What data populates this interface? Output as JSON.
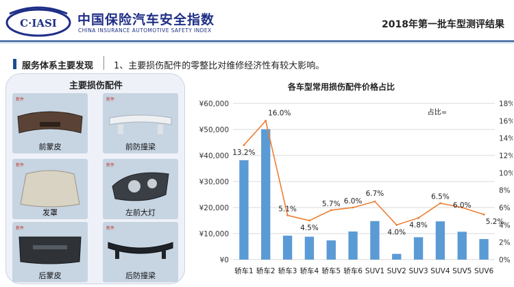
{
  "header": {
    "logo_text": "C·IASI",
    "brand_cn": "中国保险汽车安全指数",
    "brand_en": "CHINA INSURANCE AUTOMOTIVE SAFETY INDEX",
    "report_title": "2018年第一批车型测评结果"
  },
  "section": {
    "title": "服务体系主要发现",
    "finding": "1、主要损伤配件的零整比对维修经济性有较大影响。"
  },
  "parts": {
    "title": "主要损伤配件",
    "tag": "新件",
    "items": [
      {
        "label": "前蒙皮",
        "icon": "front-bumper-cover"
      },
      {
        "label": "前防撞梁",
        "icon": "front-crash-beam"
      },
      {
        "label": "发罩",
        "icon": "hood"
      },
      {
        "label": "左前大灯",
        "icon": "headlamp"
      },
      {
        "label": "后蒙皮",
        "icon": "rear-bumper-cover"
      },
      {
        "label": "后防撞梁",
        "icon": "rear-crash-beam"
      }
    ]
  },
  "colors": {
    "brand": "#1f2f86",
    "bar": "#5b9bd5",
    "line": "#ed7d31",
    "grid": "#d9d9d9"
  },
  "chart_data": {
    "type": "bar",
    "title": "各车型常用损伤配件价格占比",
    "annotation": "占比=",
    "categories": [
      "轿车1",
      "轿车2",
      "轿车3",
      "轿车4",
      "轿车5",
      "轿车6",
      "SUV1",
      "SUV2",
      "SUV3",
      "SUV4",
      "SUV5",
      "SUV6"
    ],
    "series": [
      {
        "name": "价格",
        "type": "bar",
        "axis": "left",
        "values": [
          38200,
          50100,
          9200,
          8800,
          7400,
          10800,
          14800,
          2200,
          8600,
          14700,
          10700,
          7900
        ]
      },
      {
        "name": "占比",
        "type": "line",
        "axis": "right",
        "values": [
          13.2,
          16.0,
          5.1,
          4.5,
          5.7,
          6.0,
          6.7,
          4.0,
          4.8,
          6.5,
          6.0,
          5.2
        ],
        "labels": [
          "13.2%",
          "16.0%",
          "5.1%",
          "4.5%",
          "5.7%",
          "6.0%",
          "6.7%",
          "4.0%",
          "4.8%",
          "6.5%",
          "6.0%",
          "5.2%"
        ]
      }
    ],
    "y_left": {
      "range": [
        0,
        60000
      ],
      "ticks": [
        "¥0",
        "¥10,000",
        "¥20,000",
        "¥30,000",
        "¥40,000",
        "¥50,000",
        "¥60,000"
      ]
    },
    "y_right": {
      "range": [
        0,
        18
      ],
      "ticks": [
        "0%",
        "2%",
        "4%",
        "6%",
        "8%",
        "10%",
        "12%",
        "14%",
        "16%",
        "18%"
      ]
    },
    "grid": true
  }
}
